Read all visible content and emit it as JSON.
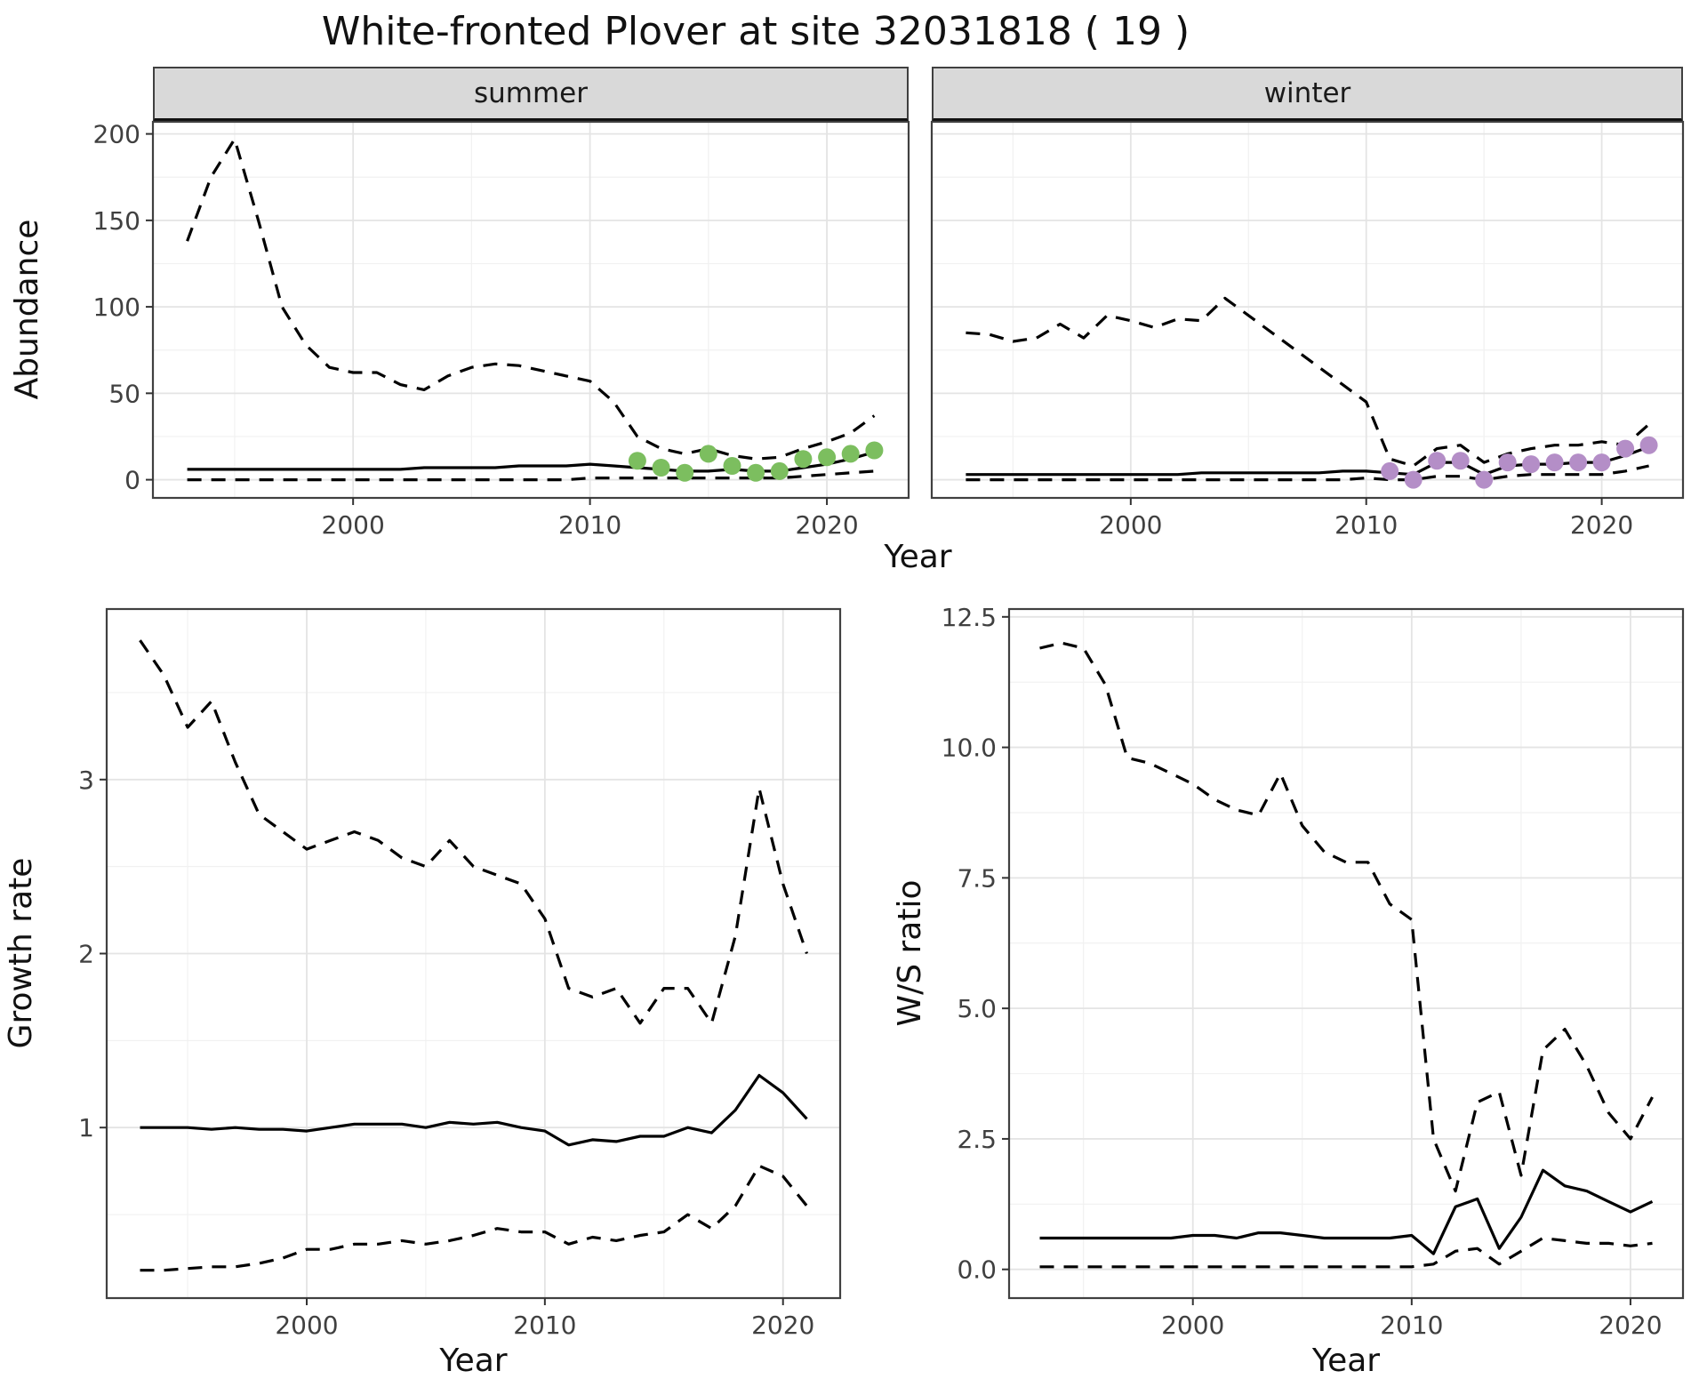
{
  "title": "White-fronted Plover at site 32031818 ( 19 )",
  "facets": {
    "summer": "summer",
    "winter": "winter"
  },
  "axis_labels": {
    "abundance": "Abundance",
    "year_top": "Year",
    "growth_rate": "Growth rate",
    "year_bottom_left": "Year",
    "ws_ratio": "W/S ratio",
    "year_bottom_right": "Year"
  },
  "colors": {
    "summer_points": "#7CBE5F",
    "winter_points": "#B48EC7",
    "line": "#000000",
    "strip_background": "#D9D9D9",
    "grid_major": "#E4E4E4",
    "grid_minor": "#F1F1F1",
    "panel_border": "#404040",
    "tick_text": "#404040"
  },
  "chart_data": [
    {
      "id": "abundance-summer",
      "type": "line",
      "facet": "summer",
      "xlabel": "Year",
      "ylabel": "Abundance",
      "x": [
        1993,
        1994,
        1995,
        1996,
        1997,
        1998,
        1999,
        2000,
        2001,
        2002,
        2003,
        2004,
        2005,
        2006,
        2007,
        2008,
        2009,
        2010,
        2011,
        2012,
        2013,
        2014,
        2015,
        2016,
        2017,
        2018,
        2019,
        2020,
        2021,
        2022
      ],
      "xlim": [
        1991.55,
        2023.45
      ],
      "ylim": [
        -10.5,
        207
      ],
      "xticks": {
        "values": [
          2000,
          2010,
          2020
        ],
        "labels": [
          "2000",
          "2010",
          "2020"
        ]
      },
      "yticks": {
        "values": [
          0,
          50,
          100,
          150,
          200
        ],
        "labels": [
          "0",
          "50",
          "100",
          "150",
          "200"
        ]
      },
      "xminor": [
        1995,
        2005,
        2015
      ],
      "yminor": [
        25,
        75,
        125,
        175
      ],
      "show_y_labels": true,
      "series": [
        {
          "name": "upper-ci",
          "style": "dashed",
          "color": "#000000",
          "values": [
            138,
            175,
            197,
            150,
            100,
            78,
            65,
            62,
            62,
            55,
            52,
            60,
            65,
            67,
            66,
            63,
            60,
            57,
            45,
            25,
            18,
            15,
            18,
            14,
            12,
            13,
            18,
            22,
            27,
            37
          ]
        },
        {
          "name": "median",
          "style": "solid",
          "color": "#000000",
          "values": [
            6,
            6,
            6,
            6,
            6,
            6,
            6,
            6,
            6,
            6,
            7,
            7,
            7,
            7,
            8,
            8,
            8,
            9,
            8,
            7,
            6,
            5,
            5,
            6,
            5,
            5,
            7,
            9,
            12,
            16
          ]
        },
        {
          "name": "lower-ci",
          "style": "dashed",
          "color": "#000000",
          "values": [
            0,
            0,
            0,
            0,
            0,
            0,
            0,
            0,
            0,
            0,
            0,
            0,
            0,
            0,
            0,
            0,
            0,
            1,
            1,
            1,
            1,
            1,
            1,
            1,
            1,
            1,
            2,
            3,
            4,
            5
          ]
        }
      ],
      "points": {
        "name": "observed-summer",
        "color": "#7CBE5F",
        "x": [
          2012,
          2013,
          2014,
          2015,
          2016,
          2017,
          2018,
          2019,
          2020,
          2021,
          2022
        ],
        "values": [
          11,
          7,
          4,
          15,
          8,
          4,
          5,
          12,
          13,
          15,
          17
        ]
      }
    },
    {
      "id": "abundance-winter",
      "type": "line",
      "facet": "winter",
      "xlabel": "Year",
      "ylabel": "Abundance",
      "x": [
        1993,
        1994,
        1995,
        1996,
        1997,
        1998,
        1999,
        2000,
        2001,
        2002,
        2003,
        2004,
        2005,
        2006,
        2007,
        2008,
        2009,
        2010,
        2011,
        2012,
        2013,
        2014,
        2015,
        2016,
        2017,
        2018,
        2019,
        2020,
        2021,
        2022
      ],
      "xlim": [
        1991.55,
        2023.45
      ],
      "ylim": [
        -10.5,
        207
      ],
      "xticks": {
        "values": [
          2000,
          2010,
          2020
        ],
        "labels": [
          "2000",
          "2010",
          "2020"
        ]
      },
      "yticks": {
        "values": [
          0,
          50,
          100,
          150,
          200
        ],
        "labels": [
          "0",
          "50",
          "100",
          "150",
          "200"
        ]
      },
      "xminor": [
        1995,
        2005,
        2015
      ],
      "yminor": [
        25,
        75,
        125,
        175
      ],
      "show_y_labels": false,
      "series": [
        {
          "name": "upper-ci",
          "style": "dashed",
          "color": "#000000",
          "values": [
            85,
            84,
            80,
            82,
            90,
            82,
            95,
            92,
            88,
            93,
            92,
            105,
            95,
            85,
            75,
            65,
            55,
            45,
            12,
            8,
            18,
            20,
            10,
            15,
            18,
            20,
            20,
            22,
            20,
            32
          ]
        },
        {
          "name": "median",
          "style": "solid",
          "color": "#000000",
          "values": [
            3,
            3,
            3,
            3,
            3,
            3,
            3,
            3,
            3,
            3,
            4,
            4,
            4,
            4,
            4,
            4,
            5,
            5,
            4,
            3,
            10,
            10,
            3,
            8,
            9,
            9,
            10,
            10,
            14,
            19
          ]
        },
        {
          "name": "lower-ci",
          "style": "dashed",
          "color": "#000000",
          "values": [
            0,
            0,
            0,
            0,
            0,
            0,
            0,
            0,
            0,
            0,
            0,
            0,
            0,
            0,
            0,
            0,
            0,
            1,
            0,
            0,
            2,
            2,
            0,
            2,
            3,
            3,
            3,
            3,
            5,
            8
          ]
        }
      ],
      "points": {
        "name": "observed-winter",
        "color": "#B48EC7",
        "x": [
          2011,
          2012,
          2013,
          2014,
          2015,
          2016,
          2017,
          2018,
          2019,
          2020,
          2021,
          2022
        ],
        "values": [
          5,
          0,
          11,
          11,
          0,
          10,
          9,
          10,
          10,
          10,
          18,
          20
        ]
      }
    },
    {
      "id": "growth-rate",
      "type": "line",
      "xlabel": "Year",
      "ylabel": "Growth rate",
      "x": [
        1993,
        1994,
        1995,
        1996,
        1997,
        1998,
        1999,
        2000,
        2001,
        2002,
        2003,
        2004,
        2005,
        2006,
        2007,
        2008,
        2009,
        2010,
        2011,
        2012,
        2013,
        2014,
        2015,
        2016,
        2017,
        2018,
        2019,
        2020,
        2021
      ],
      "xlim": [
        1991.6,
        2022.4
      ],
      "ylim": [
        0.02,
        3.98
      ],
      "xticks": {
        "values": [
          2000,
          2010,
          2020
        ],
        "labels": [
          "2000",
          "2010",
          "2020"
        ]
      },
      "yticks": {
        "values": [
          1,
          2,
          3
        ],
        "labels": [
          "1",
          "2",
          "3"
        ]
      },
      "xminor": [
        1995,
        2005,
        2015
      ],
      "yminor": [
        0.5,
        1.5,
        2.5,
        3.5
      ],
      "show_y_labels": true,
      "series": [
        {
          "name": "upper-ci",
          "style": "dashed",
          "color": "#000000",
          "values": [
            3.8,
            3.6,
            3.3,
            3.45,
            3.1,
            2.8,
            2.7,
            2.6,
            2.65,
            2.7,
            2.65,
            2.55,
            2.5,
            2.65,
            2.5,
            2.45,
            2.4,
            2.2,
            1.8,
            1.75,
            1.8,
            1.6,
            1.8,
            1.8,
            1.6,
            2.1,
            2.95,
            2.4,
            2.0
          ]
        },
        {
          "name": "median",
          "style": "solid",
          "color": "#000000",
          "values": [
            1.0,
            1.0,
            1.0,
            0.99,
            1.0,
            0.99,
            0.99,
            0.98,
            1.0,
            1.02,
            1.02,
            1.02,
            1.0,
            1.03,
            1.02,
            1.03,
            1.0,
            0.98,
            0.9,
            0.93,
            0.92,
            0.95,
            0.95,
            1.0,
            0.97,
            1.1,
            1.3,
            1.2,
            1.05
          ]
        },
        {
          "name": "lower-ci",
          "style": "dashed",
          "color": "#000000",
          "values": [
            0.18,
            0.18,
            0.19,
            0.2,
            0.2,
            0.22,
            0.25,
            0.3,
            0.3,
            0.33,
            0.33,
            0.35,
            0.33,
            0.35,
            0.38,
            0.42,
            0.4,
            0.4,
            0.33,
            0.37,
            0.35,
            0.38,
            0.4,
            0.5,
            0.42,
            0.55,
            0.78,
            0.72,
            0.55
          ]
        }
      ]
    },
    {
      "id": "ws-ratio",
      "type": "line",
      "xlabel": "Year",
      "ylabel": "W/S ratio",
      "x": [
        1993,
        1994,
        1995,
        1996,
        1997,
        1998,
        1999,
        2000,
        2001,
        2002,
        2003,
        2004,
        2005,
        2006,
        2007,
        2008,
        2009,
        2010,
        2011,
        2012,
        2013,
        2014,
        2015,
        2016,
        2017,
        2018,
        2019,
        2020,
        2021
      ],
      "xlim": [
        1991.6,
        2022.4
      ],
      "ylim": [
        -0.55,
        12.65
      ],
      "xticks": {
        "values": [
          2000,
          2010,
          2020
        ],
        "labels": [
          "2000",
          "2010",
          "2020"
        ]
      },
      "yticks": {
        "values": [
          0,
          2.5,
          5,
          7.5,
          10,
          12.5
        ],
        "labels": [
          "0.0",
          "2.5",
          "5.0",
          "7.5",
          "10.0",
          "12.5"
        ]
      },
      "xminor": [
        1995,
        2005,
        2015
      ],
      "yminor": [
        1.25,
        3.75,
        6.25,
        8.75,
        11.25
      ],
      "show_y_labels": true,
      "series": [
        {
          "name": "upper-ci",
          "style": "dashed",
          "color": "#000000",
          "values": [
            11.9,
            12.0,
            11.9,
            11.2,
            9.8,
            9.7,
            9.5,
            9.3,
            9.0,
            8.8,
            8.7,
            9.5,
            8.5,
            8.0,
            7.8,
            7.8,
            7.0,
            6.7,
            2.5,
            1.5,
            3.2,
            3.4,
            1.8,
            4.2,
            4.6,
            3.9,
            3.0,
            2.5,
            3.3
          ]
        },
        {
          "name": "median",
          "style": "solid",
          "color": "#000000",
          "values": [
            0.6,
            0.6,
            0.6,
            0.6,
            0.6,
            0.6,
            0.6,
            0.65,
            0.65,
            0.6,
            0.7,
            0.7,
            0.65,
            0.6,
            0.6,
            0.6,
            0.6,
            0.65,
            0.3,
            1.2,
            1.35,
            0.4,
            1.0,
            1.9,
            1.6,
            1.5,
            1.3,
            1.1,
            1.3
          ]
        },
        {
          "name": "lower-ci",
          "style": "dashed",
          "color": "#000000",
          "values": [
            0.05,
            0.05,
            0.05,
            0.05,
            0.05,
            0.05,
            0.05,
            0.05,
            0.05,
            0.05,
            0.05,
            0.05,
            0.05,
            0.05,
            0.05,
            0.05,
            0.05,
            0.05,
            0.1,
            0.35,
            0.4,
            0.1,
            0.35,
            0.6,
            0.55,
            0.5,
            0.5,
            0.45,
            0.5
          ]
        }
      ]
    }
  ]
}
